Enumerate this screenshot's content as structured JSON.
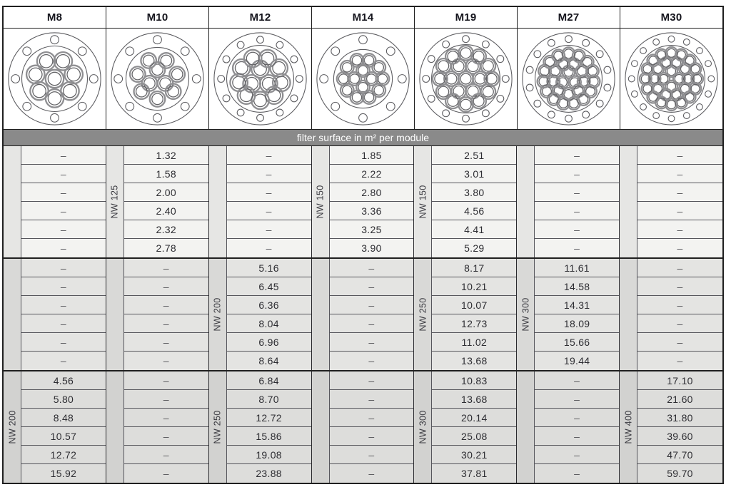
{
  "banner": {
    "label": "filter surface in m² per module",
    "bg": "#8a8a8a",
    "text_color": "#ffffff"
  },
  "empty_marker": "–",
  "modules": [
    {
      "id": "m8",
      "label": "M8",
      "tubes_total": 8,
      "diagram": {
        "bolts": 8,
        "bolt_r": 6,
        "bolt_ring": 56,
        "face_r": 47,
        "tube_r": 13,
        "rings": [
          [
            1,
            0
          ],
          [
            7,
            28
          ]
        ]
      }
    },
    {
      "id": "m10",
      "label": "M10",
      "tubes_total": 10,
      "diagram": {
        "bolts": 8,
        "bolt_r": 6,
        "bolt_ring": 56,
        "face_r": 45,
        "tube_r": 11,
        "rings": [
          [
            3,
            13
          ],
          [
            7,
            29
          ]
        ]
      }
    },
    {
      "id": "m12",
      "label": "M12",
      "tubes_total": 12,
      "diagram": {
        "bolts": 12,
        "bolt_r": 5,
        "bolt_ring": 56,
        "face_r": 48,
        "tube_r": 12.5,
        "rings": [
          [
            3,
            14
          ],
          [
            9,
            31
          ]
        ]
      }
    },
    {
      "id": "m14",
      "label": "M14",
      "tubes_total": 14,
      "diagram": {
        "bolts": 8,
        "bolt_r": 6,
        "bolt_ring": 56,
        "face_r": 42,
        "tube_r": 9.5,
        "rings": [
          [
            4,
            12
          ],
          [
            10,
            28
          ]
        ]
      }
    },
    {
      "id": "m19",
      "label": "M19",
      "tubes_total": 19,
      "diagram": {
        "bolts": 12,
        "bolt_r": 5,
        "bolt_ring": 57,
        "face_r": 49,
        "tube_r": 10.5,
        "rings": [
          [
            1,
            0
          ],
          [
            6,
            20.5
          ],
          [
            12,
            37
          ]
        ]
      }
    },
    {
      "id": "m27",
      "label": "M27",
      "tubes_total": 27,
      "diagram": {
        "bolts": 14,
        "bolt_r": 5,
        "bolt_ring": 57,
        "face_r": 48,
        "tube_r": 9,
        "rings": [
          [
            3,
            10
          ],
          [
            9,
            22
          ],
          [
            15,
            36
          ]
        ]
      }
    },
    {
      "id": "m30",
      "label": "M30",
      "tubes_total": 30,
      "diagram": {
        "bolts": 16,
        "bolt_r": 4.5,
        "bolt_ring": 57,
        "face_r": 48,
        "tube_r": 8.5,
        "rings": [
          [
            4,
            11
          ],
          [
            10,
            24
          ],
          [
            16,
            37
          ]
        ]
      }
    }
  ],
  "groups": [
    {
      "bg": "#f3f3f1",
      "strip_bg": "#e6e6e4",
      "columns": [
        {
          "nw": "",
          "values": [
            "–",
            "–",
            "–",
            "–",
            "–",
            "–"
          ]
        },
        {
          "nw": "NW 125",
          "values": [
            "1.32",
            "1.58",
            "2.00",
            "2.40",
            "2.32",
            "2.78"
          ]
        },
        {
          "nw": "",
          "values": [
            "–",
            "–",
            "–",
            "–",
            "–",
            "–"
          ]
        },
        {
          "nw": "NW 150",
          "values": [
            "1.85",
            "2.22",
            "2.80",
            "3.36",
            "3.25",
            "3.90"
          ]
        },
        {
          "nw": "NW 150",
          "values": [
            "2.51",
            "3.01",
            "3.80",
            "4.56",
            "4.41",
            "5.29"
          ]
        },
        {
          "nw": "",
          "values": [
            "–",
            "–",
            "–",
            "–",
            "–",
            "–"
          ]
        },
        {
          "nw": "",
          "values": [
            "–",
            "–",
            "–",
            "–",
            "–",
            "–"
          ]
        }
      ]
    },
    {
      "bg": "#e4e4e2",
      "strip_bg": "#d9d9d7",
      "columns": [
        {
          "nw": "",
          "values": [
            "–",
            "–",
            "–",
            "–",
            "–",
            "–"
          ]
        },
        {
          "nw": "",
          "values": [
            "–",
            "–",
            "–",
            "–",
            "–",
            "–"
          ]
        },
        {
          "nw": "NW 200",
          "values": [
            "5.16",
            "6.45",
            "6.36",
            "8.04",
            "6.96",
            "8.64"
          ]
        },
        {
          "nw": "",
          "values": [
            "–",
            "–",
            "–",
            "–",
            "–",
            "–"
          ]
        },
        {
          "nw": "NW 250",
          "values": [
            "8.17",
            "10.21",
            "10.07",
            "12.73",
            "11.02",
            "13.68"
          ]
        },
        {
          "nw": "NW 300",
          "values": [
            "11.61",
            "14.58",
            "14.31",
            "18.09",
            "15.66",
            "19.44"
          ]
        },
        {
          "nw": "",
          "values": [
            "–",
            "–",
            "–",
            "–",
            "–",
            "–"
          ]
        }
      ]
    },
    {
      "bg": "#dddddb",
      "strip_bg": "#d2d2d0",
      "columns": [
        {
          "nw": "NW 200",
          "values": [
            "4.56",
            "5.80",
            "8.48",
            "10.57",
            "12.72",
            "15.92"
          ]
        },
        {
          "nw": "",
          "values": [
            "–",
            "–",
            "–",
            "–",
            "–",
            "–"
          ]
        },
        {
          "nw": "NW 250",
          "values": [
            "6.84",
            "8.70",
            "12.72",
            "15.86",
            "19.08",
            "23.88"
          ]
        },
        {
          "nw": "",
          "values": [
            "–",
            "–",
            "–",
            "–",
            "–",
            "–"
          ]
        },
        {
          "nw": "NW 300",
          "values": [
            "10.83",
            "13.68",
            "20.14",
            "25.08",
            "30.21",
            "37.81"
          ]
        },
        {
          "nw": "",
          "values": [
            "–",
            "–",
            "–",
            "–",
            "–",
            "–"
          ]
        },
        {
          "nw": "NW 400",
          "values": [
            "17.10",
            "21.60",
            "31.80",
            "39.60",
            "47.70",
            "59.70"
          ]
        }
      ]
    }
  ]
}
